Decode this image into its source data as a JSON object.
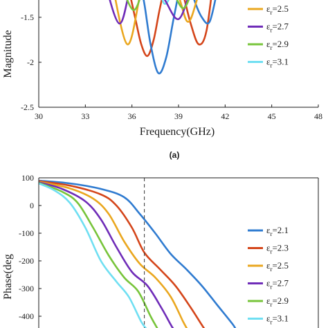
{
  "chart_data": [
    {
      "type": "line",
      "panel_label": "(a)",
      "xlabel": "Frequency(GHz)",
      "ylabel": "Magnitude",
      "xlim": [
        30,
        48
      ],
      "ylim": [
        -2.5,
        -1.2
      ],
      "xticks": [
        30,
        33,
        36,
        39,
        42,
        45,
        48
      ],
      "xtick_labels": [
        "30",
        "33",
        "36",
        "39",
        "42",
        "45",
        "48"
      ],
      "yticks": [
        -2.5,
        -2,
        -1.5
      ],
      "ytick_labels": [
        "-2.5",
        "-2",
        "-1.5"
      ],
      "grid": false,
      "legend_position": "right",
      "legend_labels": [
        "ε",
        "r"
      ],
      "series": [
        {
          "name": "2.1",
          "color": "#2f7bd0",
          "values": []
        },
        {
          "name": "2.3",
          "color": "#d4451a",
          "values": []
        },
        {
          "name": "2.5",
          "color": "#eaa71f",
          "points": [
            [
              34.6,
              -1.0
            ],
            [
              35.7,
              -1.8
            ],
            [
              36.6,
              -1.2
            ],
            [
              37.2,
              -1.0
            ],
            [
              38.8,
              -1.2
            ],
            [
              39.6,
              -1.55
            ],
            [
              40.3,
              -1.25
            ],
            [
              41.0,
              -1.0
            ]
          ]
        },
        {
          "name": "2.7",
          "color": "#6f2cb8",
          "points": [
            [
              34.1,
              -1.0
            ],
            [
              35.2,
              -1.57
            ],
            [
              36.1,
              -1.05
            ],
            [
              37.1,
              -1.0
            ],
            [
              38.1,
              -1.3
            ],
            [
              39.0,
              -1.52
            ],
            [
              39.8,
              -1.2
            ],
            [
              40.5,
              -1.0
            ]
          ]
        },
        {
          "name": "2.9",
          "color": "#77c43a",
          "points": [
            [
              35.1,
              -1.0
            ],
            [
              36.1,
              -1.42
            ],
            [
              37.0,
              -1.05
            ],
            [
              37.8,
              -1.0
            ],
            [
              38.6,
              -1.2
            ],
            [
              39.3,
              -1.4
            ],
            [
              39.9,
              -1.2
            ],
            [
              40.4,
              -1.0
            ]
          ]
        },
        {
          "name": "3.1",
          "color": "#6fdff2",
          "values": []
        }
      ],
      "visible_curves": [
        {
          "color": "#d4451a",
          "points": [
            [
              35.4,
              -1.0
            ],
            [
              35.8,
              -1.2
            ],
            [
              36.2,
              -1.5
            ],
            [
              36.6,
              -1.8
            ],
            [
              37.0,
              -1.93
            ],
            [
              37.4,
              -1.75
            ],
            [
              37.8,
              -1.4
            ],
            [
              38.3,
              -1.05
            ],
            [
              38.8,
              -1.0
            ],
            [
              39.3,
              -1.25
            ],
            [
              39.8,
              -1.58
            ],
            [
              40.3,
              -1.8
            ],
            [
              40.8,
              -1.65
            ],
            [
              41.3,
              -1.0
            ]
          ]
        },
        {
          "color": "#2f7bd0",
          "points": [
            [
              36.4,
              -1.0
            ],
            [
              36.8,
              -1.35
            ],
            [
              37.2,
              -1.8
            ],
            [
              37.7,
              -2.12
            ],
            [
              38.2,
              -1.95
            ],
            [
              38.7,
              -1.5
            ],
            [
              39.2,
              -1.1
            ],
            [
              39.6,
              -1.05
            ],
            [
              40.0,
              -1.3
            ],
            [
              40.5,
              -1.5
            ],
            [
              41.0,
              -1.55
            ],
            [
              41.5,
              -1.2
            ],
            [
              41.8,
              -1.0
            ]
          ]
        },
        {
          "color": "#6fdff2",
          "points": [
            [
              37.4,
              -1.0
            ],
            [
              37.8,
              -1.2
            ],
            [
              38.1,
              -1.35
            ],
            [
              38.5,
              -1.25
            ],
            [
              38.8,
              -1.0
            ]
          ]
        }
      ]
    },
    {
      "type": "line",
      "xlabel": "",
      "ylabel": "Phase(deg",
      "xlim": [
        30,
        48
      ],
      "ylim": [
        -450,
        100
      ],
      "yticks": [
        -400,
        -300,
        -200,
        -100,
        0,
        100
      ],
      "ytick_labels": [
        "-400",
        "-300",
        "-200",
        "-100",
        "0",
        "100"
      ],
      "grid": false,
      "legend_position": "right",
      "legend_labels": [
        "ε",
        "r"
      ],
      "vline_x": 36.8,
      "series": [
        {
          "name": "2.1",
          "color": "#2f7bd0",
          "points": [
            [
              30,
              90
            ],
            [
              32,
              80
            ],
            [
              34,
              60
            ],
            [
              35.5,
              30
            ],
            [
              36.5,
              -30
            ],
            [
              37.5,
              -100
            ],
            [
              38.5,
              -175
            ],
            [
              39.5,
              -230
            ],
            [
              40.5,
              -290
            ],
            [
              41.5,
              -360
            ],
            [
              42.5,
              -430
            ],
            [
              42.7,
              -450
            ]
          ]
        },
        {
          "name": "2.3",
          "color": "#d4451a",
          "points": [
            [
              30,
              88
            ],
            [
              32,
              72
            ],
            [
              34,
              40
            ],
            [
              35.0,
              0
            ],
            [
              36.0,
              -80
            ],
            [
              36.8,
              -170
            ],
            [
              37.8,
              -230
            ],
            [
              38.8,
              -290
            ],
            [
              39.8,
              -370
            ],
            [
              40.6,
              -440
            ],
            [
              40.8,
              -450
            ]
          ]
        },
        {
          "name": "2.5",
          "color": "#eaa71f",
          "points": [
            [
              30,
              86
            ],
            [
              32,
              62
            ],
            [
              33.5,
              25
            ],
            [
              34.5,
              -30
            ],
            [
              35.5,
              -130
            ],
            [
              36.5,
              -210
            ],
            [
              37.5,
              -260
            ],
            [
              38.5,
              -330
            ],
            [
              39.3,
              -420
            ],
            [
              39.6,
              -450
            ]
          ]
        },
        {
          "name": "2.7",
          "color": "#6f2cb8",
          "points": [
            [
              30,
              84
            ],
            [
              31.5,
              60
            ],
            [
              33,
              15
            ],
            [
              34,
              -50
            ],
            [
              35,
              -150
            ],
            [
              36,
              -240
            ],
            [
              37,
              -290
            ],
            [
              37.9,
              -370
            ],
            [
              38.6,
              -440
            ],
            [
              38.8,
              -450
            ]
          ]
        },
        {
          "name": "2.9",
          "color": "#77c43a",
          "points": [
            [
              30,
              82
            ],
            [
              31.5,
              50
            ],
            [
              32.5,
              10
            ],
            [
              33.5,
              -80
            ],
            [
              34.5,
              -180
            ],
            [
              35.5,
              -260
            ],
            [
              36.4,
              -310
            ],
            [
              37.2,
              -400
            ],
            [
              37.7,
              -450
            ]
          ]
        },
        {
          "name": "3.1",
          "color": "#6fdff2",
          "points": [
            [
              30,
              80
            ],
            [
              31,
              55
            ],
            [
              32,
              10
            ],
            [
              33,
              -80
            ],
            [
              34,
              -200
            ],
            [
              35,
              -275
            ],
            [
              35.8,
              -330
            ],
            [
              36.6,
              -420
            ],
            [
              37.0,
              -450
            ]
          ]
        }
      ]
    }
  ]
}
